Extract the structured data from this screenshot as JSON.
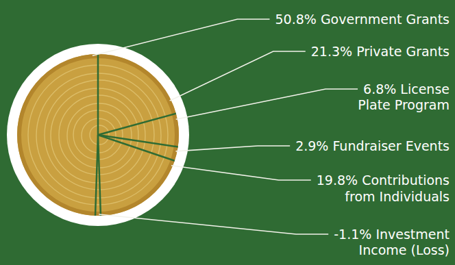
{
  "chart_data": {
    "type": "pie",
    "categories": [
      "Government Grants",
      "Private Grants",
      "License Plate Program",
      "Fundraiser Events",
      "Contributions from Individuals",
      "Investment Income (Loss)"
    ],
    "values": [
      50.8,
      21.3,
      6.8,
      2.9,
      19.8,
      -1.1
    ],
    "value_labels": [
      "50.8%",
      "21.3%",
      "6.8%",
      "2.9%",
      "19.8%",
      "-1.1%"
    ],
    "color": "#c9a040",
    "data_labels": true
  }
}
